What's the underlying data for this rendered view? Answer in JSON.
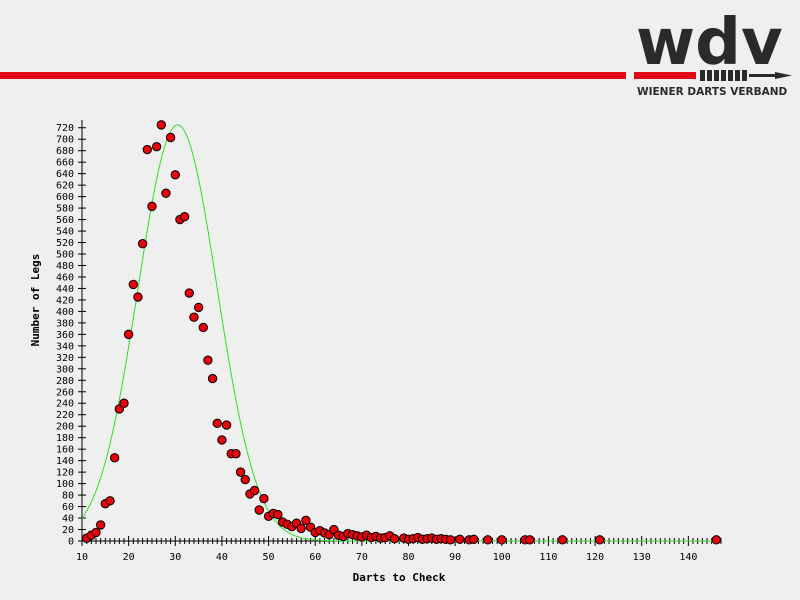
{
  "brand": {
    "logo_text": "wdv",
    "tagline": "WIENER DARTS VERBAND",
    "accent_color": "#e30613",
    "logo_dark_color": "#2a2a2a"
  },
  "chart_data": {
    "type": "scatter",
    "xlabel": "Darts to Check",
    "ylabel": "Number of Legs",
    "xlim": [
      10,
      147
    ],
    "ylim": [
      0,
      730
    ],
    "x_ticks": [
      10,
      20,
      30,
      40,
      50,
      60,
      70,
      80,
      90,
      100,
      110,
      120,
      130,
      140
    ],
    "y_ticks": [
      0,
      20,
      40,
      60,
      80,
      100,
      120,
      140,
      160,
      180,
      200,
      220,
      240,
      260,
      280,
      300,
      320,
      340,
      360,
      380,
      400,
      420,
      440,
      460,
      480,
      500,
      520,
      540,
      560,
      580,
      600,
      620,
      640,
      660,
      680,
      700,
      720
    ],
    "point_color": "#e8000a",
    "fit_color": "#33dd22",
    "fit": {
      "type": "gaussian",
      "amplitude": 725,
      "mean": 30.5,
      "sigma": 8.5
    },
    "points": [
      {
        "x": 11,
        "y": 5
      },
      {
        "x": 12,
        "y": 10
      },
      {
        "x": 13,
        "y": 15
      },
      {
        "x": 14,
        "y": 28
      },
      {
        "x": 15,
        "y": 65
      },
      {
        "x": 16,
        "y": 70
      },
      {
        "x": 17,
        "y": 145
      },
      {
        "x": 18,
        "y": 230
      },
      {
        "x": 19,
        "y": 240
      },
      {
        "x": 20,
        "y": 360
      },
      {
        "x": 21,
        "y": 447
      },
      {
        "x": 22,
        "y": 425
      },
      {
        "x": 23,
        "y": 518
      },
      {
        "x": 24,
        "y": 682
      },
      {
        "x": 25,
        "y": 583
      },
      {
        "x": 26,
        "y": 687
      },
      {
        "x": 27,
        "y": 725
      },
      {
        "x": 28,
        "y": 606
      },
      {
        "x": 29,
        "y": 703
      },
      {
        "x": 30,
        "y": 638
      },
      {
        "x": 31,
        "y": 560
      },
      {
        "x": 32,
        "y": 565
      },
      {
        "x": 33,
        "y": 432
      },
      {
        "x": 34,
        "y": 390
      },
      {
        "x": 35,
        "y": 407
      },
      {
        "x": 36,
        "y": 372
      },
      {
        "x": 37,
        "y": 315
      },
      {
        "x": 38,
        "y": 283
      },
      {
        "x": 39,
        "y": 205
      },
      {
        "x": 40,
        "y": 176
      },
      {
        "x": 41,
        "y": 202
      },
      {
        "x": 42,
        "y": 152
      },
      {
        "x": 43,
        "y": 152
      },
      {
        "x": 44,
        "y": 120
      },
      {
        "x": 45,
        "y": 107
      },
      {
        "x": 46,
        "y": 82
      },
      {
        "x": 47,
        "y": 88
      },
      {
        "x": 48,
        "y": 54
      },
      {
        "x": 49,
        "y": 74
      },
      {
        "x": 50,
        "y": 43
      },
      {
        "x": 51,
        "y": 48
      },
      {
        "x": 52,
        "y": 46
      },
      {
        "x": 53,
        "y": 33
      },
      {
        "x": 54,
        "y": 29
      },
      {
        "x": 55,
        "y": 25
      },
      {
        "x": 56,
        "y": 31
      },
      {
        "x": 57,
        "y": 22
      },
      {
        "x": 58,
        "y": 36
      },
      {
        "x": 59,
        "y": 24
      },
      {
        "x": 60,
        "y": 15
      },
      {
        "x": 61,
        "y": 18
      },
      {
        "x": 62,
        "y": 14
      },
      {
        "x": 63,
        "y": 11
      },
      {
        "x": 64,
        "y": 20
      },
      {
        "x": 65,
        "y": 10
      },
      {
        "x": 66,
        "y": 8
      },
      {
        "x": 67,
        "y": 13
      },
      {
        "x": 68,
        "y": 11
      },
      {
        "x": 69,
        "y": 9
      },
      {
        "x": 70,
        "y": 7
      },
      {
        "x": 71,
        "y": 10
      },
      {
        "x": 72,
        "y": 6
      },
      {
        "x": 73,
        "y": 8
      },
      {
        "x": 74,
        "y": 5
      },
      {
        "x": 75,
        "y": 6
      },
      {
        "x": 76,
        "y": 9
      },
      {
        "x": 77,
        "y": 4
      },
      {
        "x": 79,
        "y": 5
      },
      {
        "x": 80,
        "y": 3
      },
      {
        "x": 81,
        "y": 4
      },
      {
        "x": 82,
        "y": 6
      },
      {
        "x": 83,
        "y": 3
      },
      {
        "x": 84,
        "y": 4
      },
      {
        "x": 85,
        "y": 5
      },
      {
        "x": 86,
        "y": 3
      },
      {
        "x": 87,
        "y": 4
      },
      {
        "x": 88,
        "y": 3
      },
      {
        "x": 89,
        "y": 2
      },
      {
        "x": 91,
        "y": 3
      },
      {
        "x": 93,
        "y": 2
      },
      {
        "x": 94,
        "y": 3
      },
      {
        "x": 97,
        "y": 2
      },
      {
        "x": 100,
        "y": 2
      },
      {
        "x": 105,
        "y": 2
      },
      {
        "x": 106,
        "y": 2
      },
      {
        "x": 113,
        "y": 2
      },
      {
        "x": 121,
        "y": 2
      },
      {
        "x": 146,
        "y": 2
      }
    ]
  }
}
